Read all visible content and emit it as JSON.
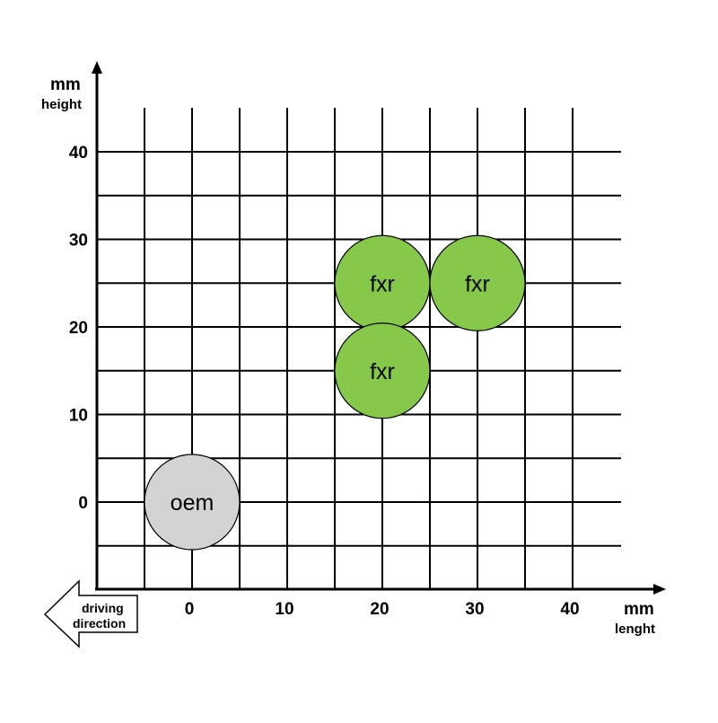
{
  "x_axis": {
    "unit": "mm",
    "label": "lenght",
    "ticks": [
      0,
      10,
      20,
      30,
      40
    ]
  },
  "y_axis": {
    "unit": "mm",
    "label": "height",
    "ticks": [
      0,
      10,
      20,
      30,
      40
    ]
  },
  "driving_arrow": {
    "line1": "driving",
    "line2": "direction"
  },
  "circles": [
    {
      "label": "oem",
      "x": 0,
      "y": 0,
      "color": "#d3d3d3"
    },
    {
      "label": "fxr",
      "x": 20,
      "y": 25,
      "color": "#86c84a"
    },
    {
      "label": "fxr",
      "x": 30,
      "y": 25,
      "color": "#86c84a"
    },
    {
      "label": "fxr",
      "x": 20,
      "y": 15,
      "color": "#86c84a"
    }
  ],
  "colors": {
    "grid": "#000000",
    "oem": "#d3d3d3",
    "fxr": "#86c84a"
  }
}
